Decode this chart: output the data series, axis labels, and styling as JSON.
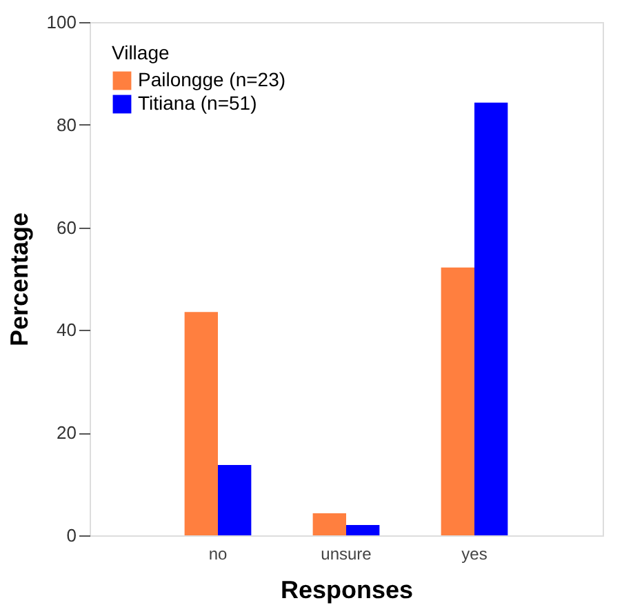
{
  "chart_data": {
    "type": "bar",
    "xlabel": "Responses",
    "ylabel": "Percentage",
    "legend_title": "Village",
    "categories": [
      "no",
      "unsure",
      "yes"
    ],
    "series": [
      {
        "name": "Pailongge (n=23)",
        "color": "#ff7f3f",
        "values": [
          43.5,
          4.3,
          52.2
        ]
      },
      {
        "name": "Titiana (n=51)",
        "color": "#0000ff",
        "values": [
          13.7,
          2.0,
          84.3
        ]
      }
    ],
    "ylim": [
      0,
      100
    ],
    "yticks": [
      0,
      20,
      40,
      60,
      80,
      100
    ],
    "grid": false,
    "legend": "top left"
  }
}
